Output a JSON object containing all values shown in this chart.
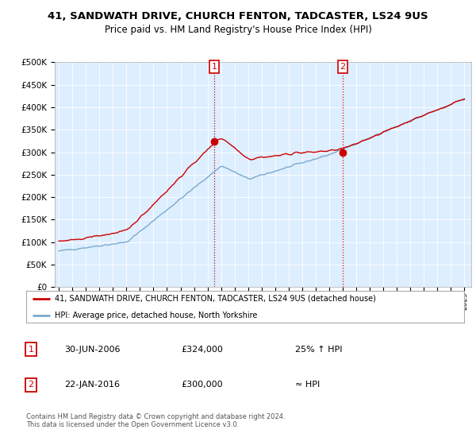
{
  "title": "41, SANDWATH DRIVE, CHURCH FENTON, TADCASTER, LS24 9US",
  "subtitle": "Price paid vs. HM Land Registry's House Price Index (HPI)",
  "red_label": "41, SANDWATH DRIVE, CHURCH FENTON, TADCASTER, LS24 9US (detached house)",
  "blue_label": "HPI: Average price, detached house, North Yorkshire",
  "sale1_date": "30-JUN-2006",
  "sale1_price": "£324,000",
  "sale1_hpi": "25% ↑ HPI",
  "sale2_date": "22-JAN-2016",
  "sale2_price": "£300,000",
  "sale2_hpi": "≈ HPI",
  "footer": "Contains HM Land Registry data © Crown copyright and database right 2024.\nThis data is licensed under the Open Government Licence v3.0.",
  "red_color": "#cc0000",
  "blue_color": "#7aaacc",
  "vline_color": "#cc0000",
  "plot_bg": "#ddeeff",
  "fig_bg": "#ffffff",
  "grid_color": "#ffffff",
  "yticks": [
    0,
    50,
    100,
    150,
    200,
    250,
    300,
    350,
    400,
    450,
    500
  ],
  "xlim": [
    1994.7,
    2025.5
  ],
  "ylim": [
    0,
    500
  ],
  "sale1_t": 11.5,
  "sale2_t": 21.08
}
